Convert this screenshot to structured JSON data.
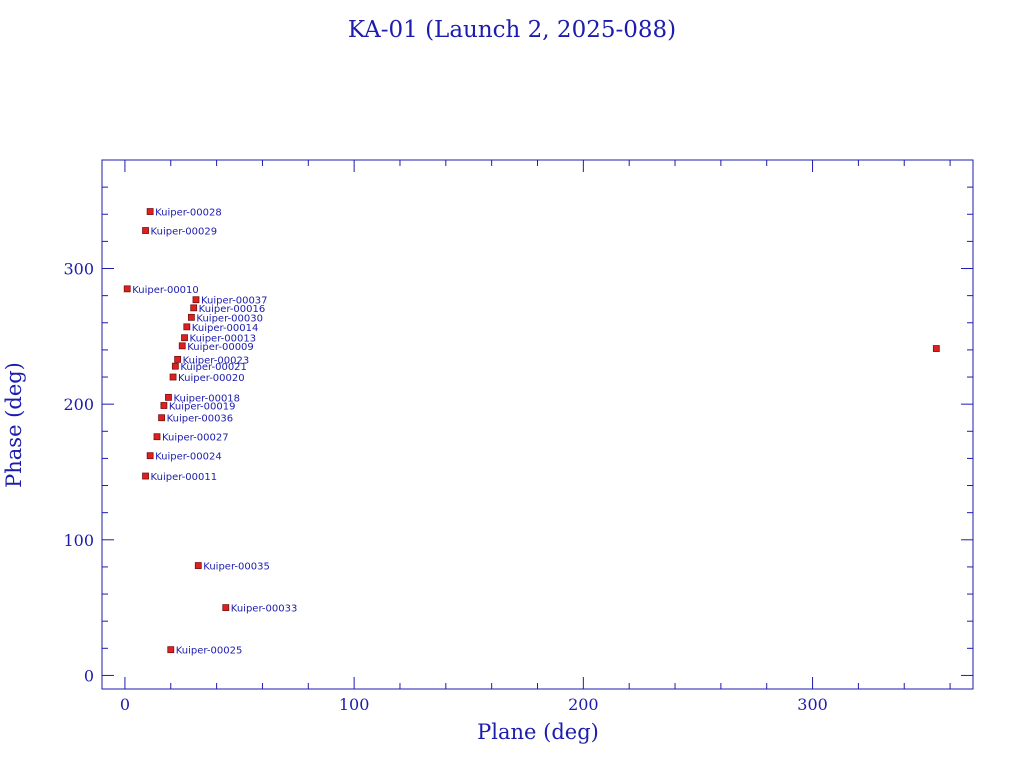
{
  "chart_data": {
    "type": "scatter",
    "title": "KA-01 (Launch 2, 2025-088)",
    "xlabel": "Plane (deg)",
    "ylabel": "Phase (deg)",
    "xlim": [
      -10,
      370
    ],
    "ylim": [
      -10,
      380
    ],
    "xticks": [
      0,
      100,
      200,
      300
    ],
    "yticks": [
      0,
      100,
      200,
      300
    ],
    "x_minor_step": 20,
    "y_minor_step": 20,
    "grid": false,
    "marker_color": "#e02020",
    "text_color": "#1c1cae",
    "points": [
      {
        "label": "Kuiper-00028",
        "x": 11,
        "y": 342
      },
      {
        "label": "Kuiper-00029",
        "x": 9,
        "y": 328
      },
      {
        "label": "Kuiper-00010",
        "x": 1,
        "y": 285
      },
      {
        "label": "Kuiper-00037",
        "x": 31,
        "y": 277
      },
      {
        "label": "Kuiper-00016",
        "x": 30,
        "y": 271
      },
      {
        "label": "Kuiper-00030",
        "x": 29,
        "y": 264
      },
      {
        "label": "Kuiper-00014",
        "x": 27,
        "y": 257
      },
      {
        "label": "Kuiper-00013",
        "x": 26,
        "y": 249
      },
      {
        "label": "Kuiper-00009",
        "x": 25,
        "y": 243
      },
      {
        "label": "Kuiper-00023",
        "x": 23,
        "y": 233
      },
      {
        "label": "Kuiper-00021",
        "x": 22,
        "y": 228
      },
      {
        "label": "Kuiper-00020",
        "x": 21,
        "y": 220
      },
      {
        "label": "Kuiper-00018",
        "x": 19,
        "y": 205
      },
      {
        "label": "Kuiper-00019",
        "x": 17,
        "y": 199
      },
      {
        "label": "Kuiper-00036",
        "x": 16,
        "y": 190
      },
      {
        "label": "Kuiper-00027",
        "x": 14,
        "y": 176
      },
      {
        "label": "Kuiper-00024",
        "x": 11,
        "y": 162
      },
      {
        "label": "Kuiper-00011",
        "x": 9,
        "y": 147
      },
      {
        "label": "Kuiper-00035",
        "x": 32,
        "y": 81
      },
      {
        "label": "Kuiper-00033",
        "x": 44,
        "y": 50
      },
      {
        "label": "Kuiper-00025",
        "x": 20,
        "y": 19
      },
      {
        "label": "",
        "x": 354,
        "y": 241
      }
    ]
  }
}
